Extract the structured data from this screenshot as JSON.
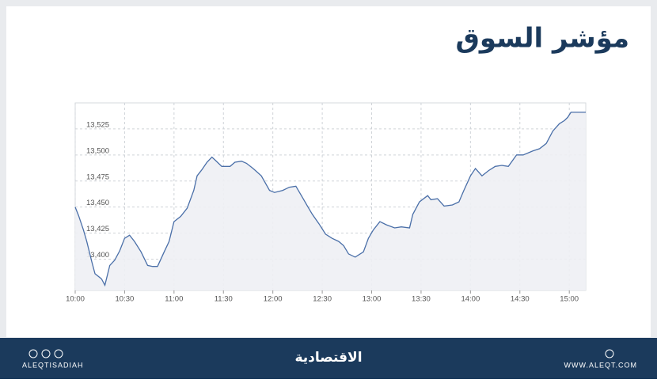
{
  "header": {
    "title": "مؤشر السوق"
  },
  "chart_data": {
    "type": "line",
    "x": [
      600,
      602,
      605,
      607,
      610,
      612,
      616,
      618,
      621,
      624,
      627,
      630,
      633,
      636,
      640,
      644,
      647,
      650,
      654,
      657,
      660,
      664,
      668,
      672,
      674,
      677,
      680,
      683,
      685,
      689,
      694,
      697,
      701,
      704,
      708,
      713,
      718,
      721,
      726,
      730,
      734,
      737,
      741,
      744,
      748,
      752,
      756,
      760,
      763,
      766,
      770,
      775,
      778,
      781,
      785,
      789,
      794,
      798,
      803,
      805,
      809,
      814,
      816,
      820,
      824,
      829,
      833,
      836,
      840,
      843,
      847,
      851,
      855,
      859,
      863,
      868,
      872,
      878,
      882,
      886,
      890,
      894,
      897,
      899,
      901,
      910
    ],
    "series": [
      {
        "name": "مؤشر السوق",
        "color": "#4a6fa8",
        "values": [
          13450,
          13442,
          13428,
          13417,
          13398,
          13386,
          13381,
          13375,
          13394,
          13399,
          13408,
          13420,
          13423,
          13417,
          13407,
          13394,
          13393,
          13393,
          13407,
          13417,
          13436,
          13441,
          13449,
          13466,
          13480,
          13486,
          13493,
          13498,
          13495,
          13489,
          13489,
          13493,
          13494,
          13492,
          13487,
          13480,
          13466,
          13464,
          13466,
          13469,
          13470,
          13462,
          13451,
          13443,
          13434,
          13424,
          13420,
          13417,
          13413,
          13405,
          13402,
          13407,
          13420,
          13428,
          13436,
          13433,
          13430,
          13431,
          13430,
          13443,
          13455,
          13461,
          13457,
          13458,
          13451,
          13452,
          13455,
          13466,
          13480,
          13487,
          13480,
          13485,
          13489,
          13490,
          13489,
          13500,
          13500,
          13504,
          13506,
          13511,
          13523,
          13530,
          13533,
          13536,
          13541,
          13541
        ]
      }
    ],
    "xlim": [
      600,
      910
    ],
    "xticks": [
      {
        "value": 600,
        "label": "10:00"
      },
      {
        "value": 630,
        "label": "10:30"
      },
      {
        "value": 660,
        "label": "11:00"
      },
      {
        "value": 690,
        "label": "11:30"
      },
      {
        "value": 720,
        "label": "12:00"
      },
      {
        "value": 750,
        "label": "12:30"
      },
      {
        "value": 780,
        "label": "13:00"
      },
      {
        "value": 810,
        "label": "13:30"
      },
      {
        "value": 840,
        "label": "14:00"
      },
      {
        "value": 870,
        "label": "14:30"
      },
      {
        "value": 900,
        "label": "15:00"
      }
    ],
    "ylim": [
      13370,
      13550
    ],
    "yticks": [
      {
        "value": 13400,
        "label": "13,400"
      },
      {
        "value": 13425,
        "label": "13,425"
      },
      {
        "value": 13450,
        "label": "13,450"
      },
      {
        "value": 13475,
        "label": "13,475"
      },
      {
        "value": 13500,
        "label": "13,500"
      },
      {
        "value": 13525,
        "label": "13,525"
      }
    ],
    "grid": true
  },
  "footer": {
    "left": "ALEQTISADIAH",
    "center": "الاقتصادية",
    "right": "WWW.ALEQT.COM"
  }
}
